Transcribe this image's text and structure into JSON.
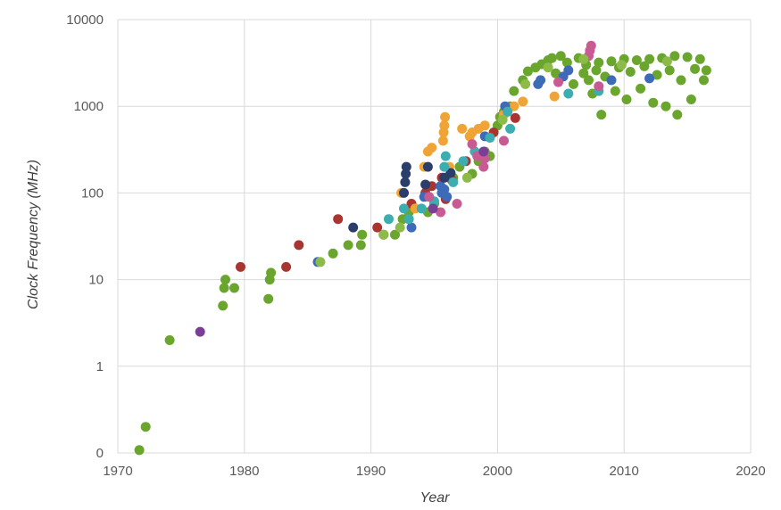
{
  "palette": {
    "green": "#6aa62e",
    "orange": "#f0a436",
    "darkred": "#a93530",
    "blue": "#3d6bb8",
    "navy": "#2b3e6b",
    "teal": "#3cadb0",
    "pink": "#c95b93",
    "purple": "#7a3e96",
    "lightgreen": "#8dbb4a"
  },
  "chart_data": {
    "type": "scatter",
    "title": "",
    "xlabel": "Year",
    "ylabel": "Clock Frequency (MHz)",
    "xlim": [
      1970,
      2020
    ],
    "ylim_log10": [
      -1,
      4
    ],
    "y_scale": "log",
    "x_ticks": [
      1970,
      1980,
      1990,
      2000,
      2010,
      2020
    ],
    "x_tick_labels": [
      "1970",
      "1980",
      "1990",
      "2000",
      "2010",
      "2020"
    ],
    "y_ticks": [
      0.1,
      1,
      10,
      100,
      1000,
      10000
    ],
    "y_tick_labels": [
      "0",
      "1",
      "10",
      "100",
      "1000",
      "10000"
    ],
    "grid": true,
    "legend": "none",
    "series": [
      {
        "name": "green",
        "points": [
          [
            1971.7,
            0.108
          ],
          [
            1972.2,
            0.2
          ],
          [
            1974.1,
            2
          ],
          [
            1978.3,
            5
          ],
          [
            1978.4,
            8
          ],
          [
            1978.5,
            10
          ],
          [
            1979.2,
            8
          ],
          [
            1981.9,
            6
          ],
          [
            1982.0,
            10
          ],
          [
            1982.1,
            12
          ],
          [
            1987.0,
            20
          ],
          [
            1988.2,
            25
          ],
          [
            1989.2,
            25
          ],
          [
            1989.3,
            33
          ],
          [
            1991.9,
            33
          ],
          [
            1992.5,
            50
          ],
          [
            1993.0,
            60
          ],
          [
            1993.2,
            66
          ],
          [
            1994.5,
            60
          ],
          [
            1995.0,
            75
          ],
          [
            1996.5,
            150
          ],
          [
            1997.0,
            200
          ],
          [
            1998.0,
            166
          ],
          [
            1998.5,
            233
          ],
          [
            1999.0,
            300
          ],
          [
            1999.4,
            266
          ],
          [
            2000.0,
            600
          ],
          [
            2000.2,
            750
          ],
          [
            2000.5,
            866
          ],
          [
            2001.0,
            1000
          ],
          [
            2001.3,
            1500
          ],
          [
            2002.0,
            2000
          ],
          [
            2002.4,
            2530
          ],
          [
            2003.0,
            2800
          ],
          [
            2003.5,
            3060
          ],
          [
            2004.0,
            3400
          ],
          [
            2004.3,
            3600
          ],
          [
            2004.6,
            2400
          ],
          [
            2005.0,
            3800
          ],
          [
            2005.5,
            3200
          ],
          [
            2006.0,
            1800
          ],
          [
            2006.4,
            3600
          ],
          [
            2006.8,
            2400
          ],
          [
            2007.0,
            3000
          ],
          [
            2007.2,
            2000
          ],
          [
            2007.5,
            1400
          ],
          [
            2007.8,
            2600
          ],
          [
            2008.0,
            3200
          ],
          [
            2008.2,
            800
          ],
          [
            2008.5,
            2200
          ],
          [
            2009.0,
            3300
          ],
          [
            2009.3,
            1500
          ],
          [
            2009.6,
            2800
          ],
          [
            2010.0,
            3500
          ],
          [
            2010.2,
            1200
          ],
          [
            2010.5,
            2500
          ],
          [
            2011.0,
            3400
          ],
          [
            2011.3,
            1600
          ],
          [
            2011.6,
            2900
          ],
          [
            2012.0,
            3500
          ],
          [
            2012.3,
            1100
          ],
          [
            2012.6,
            2300
          ],
          [
            2013.0,
            3600
          ],
          [
            2013.3,
            1000
          ],
          [
            2013.6,
            2600
          ],
          [
            2014.0,
            3800
          ],
          [
            2014.2,
            800
          ],
          [
            2014.5,
            2000
          ],
          [
            2015.0,
            3700
          ],
          [
            2015.3,
            1200
          ],
          [
            2015.6,
            2700
          ],
          [
            2016.0,
            3500
          ],
          [
            2016.3,
            2000
          ],
          [
            2016.5,
            2600
          ]
        ]
      },
      {
        "name": "darkred",
        "points": [
          [
            1979.7,
            14
          ],
          [
            1983.3,
            14
          ],
          [
            1984.3,
            25
          ],
          [
            1987.4,
            50
          ],
          [
            1990.5,
            40
          ],
          [
            1991.0,
            33
          ],
          [
            1993.2,
            75
          ],
          [
            1994.3,
            100
          ],
          [
            1994.8,
            120
          ],
          [
            1995.6,
            150
          ],
          [
            1995.9,
            85
          ],
          [
            1996.4,
            140
          ],
          [
            1997.5,
            233
          ],
          [
            1999.7,
            500
          ],
          [
            2001.4,
            733
          ]
        ]
      },
      {
        "name": "orange",
        "points": [
          [
            1992.4,
            100
          ],
          [
            1993.5,
            66
          ],
          [
            1994.2,
            200
          ],
          [
            1994.5,
            300
          ],
          [
            1994.8,
            333
          ],
          [
            1995.7,
            400
          ],
          [
            1995.75,
            500
          ],
          [
            1995.8,
            600
          ],
          [
            1995.85,
            750
          ],
          [
            1996.2,
            200
          ],
          [
            1997.2,
            550
          ],
          [
            1997.8,
            450
          ],
          [
            1998.0,
            500
          ],
          [
            1998.5,
            550
          ],
          [
            1999.0,
            600
          ],
          [
            2000.5,
            800
          ],
          [
            2001.3,
            1000
          ],
          [
            2002.0,
            1133
          ],
          [
            2004.5,
            1300
          ]
        ]
      },
      {
        "name": "blue",
        "points": [
          [
            1985.8,
            16
          ],
          [
            1993.2,
            40
          ],
          [
            1994.2,
            90
          ],
          [
            1995.5,
            120
          ],
          [
            1995.6,
            100
          ],
          [
            1995.8,
            110
          ],
          [
            1996.0,
            90
          ],
          [
            1999.0,
            450
          ],
          [
            2000.6,
            1000
          ],
          [
            2003.2,
            1800
          ],
          [
            2003.4,
            2000
          ],
          [
            2005.2,
            2200
          ],
          [
            2005.6,
            2600
          ],
          [
            2009.0,
            2000
          ],
          [
            2012.0,
            2100
          ]
        ]
      },
      {
        "name": "navy",
        "points": [
          [
            1988.6,
            40
          ],
          [
            1992.6,
            100
          ],
          [
            1992.7,
            133
          ],
          [
            1992.75,
            166
          ],
          [
            1992.8,
            200
          ],
          [
            1994.3,
            125
          ],
          [
            1994.5,
            200
          ],
          [
            1995.8,
            150
          ],
          [
            1996.3,
            170
          ]
        ]
      },
      {
        "name": "teal",
        "points": [
          [
            1991.4,
            50
          ],
          [
            1992.6,
            66
          ],
          [
            1993.0,
            50
          ],
          [
            1994.0,
            66
          ],
          [
            1995.0,
            80
          ],
          [
            1995.8,
            200
          ],
          [
            1995.9,
            266
          ],
          [
            1996.5,
            133
          ],
          [
            1997.3,
            233
          ],
          [
            1998.2,
            300
          ],
          [
            1999.4,
            433
          ],
          [
            2000.8,
            866
          ],
          [
            2001.0,
            550
          ],
          [
            2005.6,
            1400
          ],
          [
            2008.0,
            1500
          ]
        ]
      },
      {
        "name": "pink",
        "points": [
          [
            1994.6,
            90
          ],
          [
            1995.5,
            60
          ],
          [
            1996.8,
            75
          ],
          [
            1998.0,
            366
          ],
          [
            1998.4,
            266
          ],
          [
            1998.9,
            200
          ],
          [
            1999.0,
            250
          ],
          [
            2000.5,
            400
          ],
          [
            2004.8,
            1900
          ],
          [
            2007.2,
            3800
          ],
          [
            2007.3,
            4400
          ],
          [
            2007.4,
            5000
          ],
          [
            2008.0,
            1700
          ]
        ]
      },
      {
        "name": "purple",
        "points": [
          [
            1976.5,
            2.5
          ],
          [
            1994.9,
            66
          ],
          [
            1998.9,
            300
          ]
        ]
      },
      {
        "name": "lightgreen",
        "points": [
          [
            1986.0,
            16
          ],
          [
            1991.0,
            33
          ],
          [
            1992.3,
            40
          ],
          [
            1997.6,
            150
          ],
          [
            2000.4,
            700
          ],
          [
            2002.2,
            1800
          ],
          [
            2004.0,
            2800
          ],
          [
            2006.8,
            3500
          ],
          [
            2009.8,
            3000
          ],
          [
            2013.4,
            3300
          ]
        ]
      }
    ]
  }
}
